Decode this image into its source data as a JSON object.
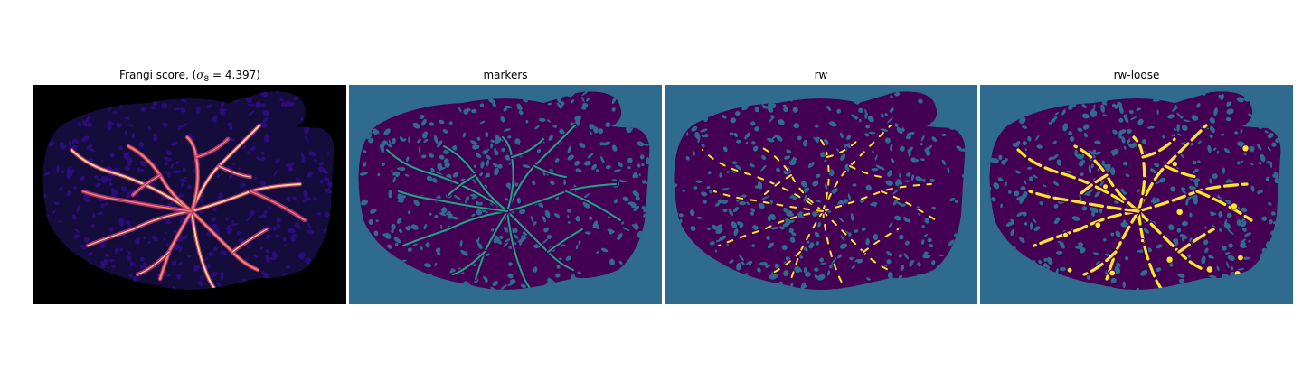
{
  "figure": {
    "panels": [
      {
        "title_prefix": "Frangi score, (",
        "title_symbol": "σ",
        "title_subscript": "8",
        "title_suffix": " = 4.397)",
        "colormap": "magma",
        "background_color": "#000000",
        "texture_color": "#2a0c7a",
        "vessel_colors": [
          "#b63679",
          "#fb8861",
          "#fcd28a"
        ]
      },
      {
        "title": "markers",
        "colormap": "viridis",
        "background_color": "#2e6b8e",
        "texture_color": "#440154",
        "vessel_colors": [
          "#20a486"
        ]
      },
      {
        "title": "rw",
        "colormap": "viridis",
        "background_color": "#2e6b8e",
        "texture_color": "#440154",
        "vessel_colors": [
          "#fde725",
          "#b5de2b"
        ]
      },
      {
        "title": "rw-loose",
        "colormap": "viridis",
        "background_color": "#2e6b8e",
        "texture_color": "#440154",
        "vessel_colors": [
          "#fde725",
          "#b5de2b"
        ]
      }
    ]
  }
}
